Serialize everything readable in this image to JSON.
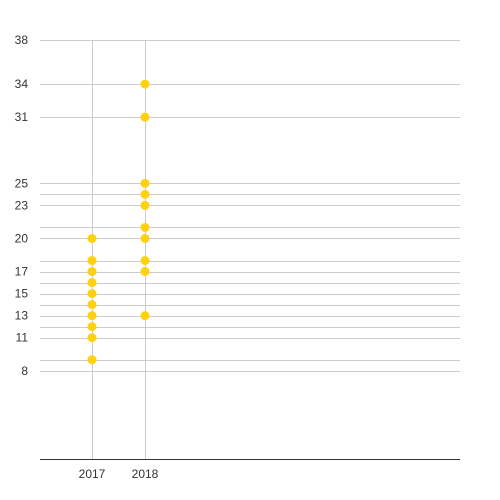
{
  "chart_data": {
    "type": "scatter",
    "title": "",
    "xlabel": "",
    "ylabel": "",
    "categories": [
      "2017",
      "2018"
    ],
    "yticks": [
      8,
      11,
      13,
      15,
      17,
      20,
      23,
      25,
      31,
      34,
      38
    ],
    "ylim": [
      0,
      38
    ],
    "grid": true,
    "legend": "none",
    "series": [
      {
        "category": "2017",
        "values": [
          9,
          11,
          12,
          13,
          14,
          15,
          16,
          17,
          18,
          20
        ]
      },
      {
        "category": "2018",
        "values": [
          13,
          17,
          18,
          20,
          21,
          23,
          24,
          25,
          31,
          34
        ]
      }
    ],
    "colors": {
      "point": "#FFD10F",
      "grid": "#cccccc",
      "axis": "#333333"
    }
  }
}
